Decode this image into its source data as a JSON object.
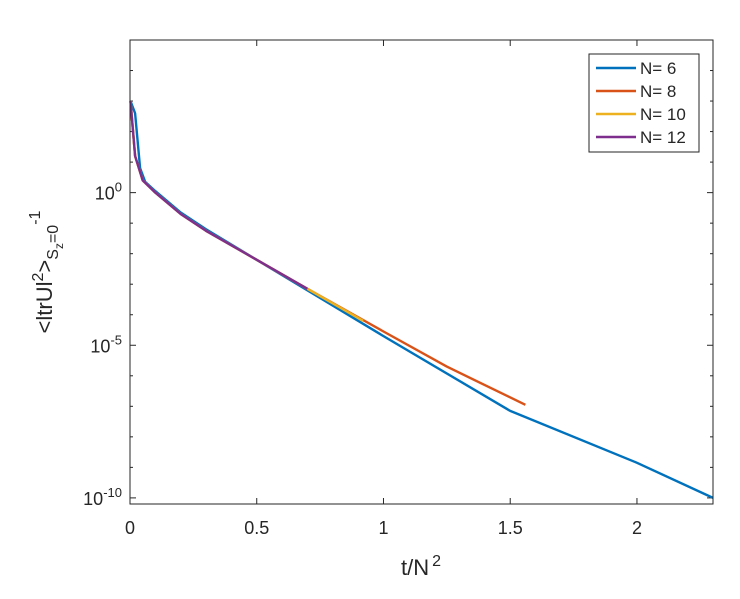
{
  "chart_data": {
    "type": "line",
    "xlabel_base": "t/N",
    "xlabel_sup": "2",
    "ylabel_parts": {
      "open": "<ltrUl",
      "sup2": "2",
      "close": ">",
      "s": "S",
      "z": "z",
      "eq0": "=0",
      "exp": "-1"
    },
    "xlim": [
      0,
      2.3
    ],
    "ylim_log10": [
      -10.2,
      5.0
    ],
    "y_scale": "log",
    "x_ticks": [
      {
        "v": 0,
        "label": "0"
      },
      {
        "v": 0.5,
        "label": "0.5"
      },
      {
        "v": 1,
        "label": "1"
      },
      {
        "v": 1.5,
        "label": "1.5"
      },
      {
        "v": 2,
        "label": "2"
      }
    ],
    "y_ticks": [
      {
        "exp": 0,
        "base": "10",
        "sup": "0"
      },
      {
        "exp": -5,
        "base": "10",
        "sup": "-5"
      },
      {
        "exp": -10,
        "base": "10",
        "sup": "-10"
      }
    ],
    "legend_position": "top-right",
    "series": [
      {
        "name": "N= 6",
        "color": "#0072BD",
        "points": [
          [
            0.002,
            3.0
          ],
          [
            0.02,
            2.6
          ],
          [
            0.04,
            0.8
          ],
          [
            0.06,
            0.35
          ],
          [
            0.1,
            0.05
          ],
          [
            0.2,
            -0.65
          ],
          [
            0.3,
            -1.2
          ],
          [
            0.5,
            -2.2
          ],
          [
            0.7,
            -3.2
          ],
          [
            1.0,
            -4.7
          ],
          [
            1.5,
            -7.15
          ],
          [
            2.0,
            -8.85
          ],
          [
            2.3,
            -10.0
          ]
        ]
      },
      {
        "name": "N= 8",
        "color": "#D95319",
        "points": [
          [
            0.002,
            3.0
          ],
          [
            0.02,
            1.2
          ],
          [
            0.05,
            0.4
          ],
          [
            0.1,
            0.0
          ],
          [
            0.2,
            -0.7
          ],
          [
            0.3,
            -1.25
          ],
          [
            0.5,
            -2.2
          ],
          [
            0.7,
            -3.15
          ],
          [
            1.0,
            -4.55
          ],
          [
            1.25,
            -5.7
          ],
          [
            1.56,
            -6.95
          ]
        ]
      },
      {
        "name": "N= 10",
        "color": "#EDB120",
        "points": [
          [
            0.002,
            3.0
          ],
          [
            0.02,
            1.2
          ],
          [
            0.05,
            0.4
          ],
          [
            0.1,
            0.0
          ],
          [
            0.2,
            -0.7
          ],
          [
            0.3,
            -1.25
          ],
          [
            0.5,
            -2.2
          ],
          [
            0.7,
            -3.15
          ],
          [
            0.92,
            -4.2
          ]
        ]
      },
      {
        "name": "N= 12",
        "color": "#7E2F8E",
        "points": [
          [
            0.002,
            3.0
          ],
          [
            0.02,
            1.2
          ],
          [
            0.05,
            0.4
          ],
          [
            0.1,
            0.0
          ],
          [
            0.2,
            -0.7
          ],
          [
            0.3,
            -1.25
          ],
          [
            0.5,
            -2.2
          ],
          [
            0.7,
            -3.15
          ]
        ]
      }
    ]
  }
}
